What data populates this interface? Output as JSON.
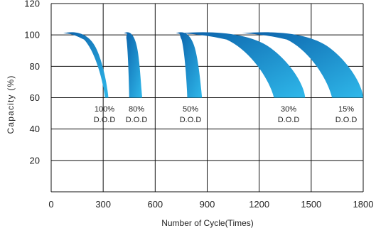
{
  "chart_data": {
    "type": "area",
    "xlabel": "Number of Cycle(Times)",
    "ylabel": "Capacity (%)",
    "xlim": [
      0,
      1800
    ],
    "ylim": [
      0,
      120
    ],
    "x_ticks": [
      "0",
      "300",
      "600",
      "900",
      "1200",
      "1500",
      "1800"
    ],
    "y_ticks": [
      "20",
      "40",
      "60",
      "80",
      "100",
      "120"
    ],
    "grid": true,
    "bands": [
      {
        "label": "100%",
        "sublabel": "D.O.D",
        "x_start": 70,
        "x_end_low": 310,
        "x_end_high": 330,
        "color_dark": "#0a5fa8",
        "color_light": "#2fb8ea"
      },
      {
        "label": "80%",
        "sublabel": "D.O.D",
        "x_start": 420,
        "x_end_low": 450,
        "x_end_high": 525,
        "color_dark": "#0a5fa8",
        "color_light": "#2fb8ea"
      },
      {
        "label": "50%",
        "sublabel": "D.O.D",
        "x_start": 720,
        "x_end_low": 785,
        "x_end_high": 870,
        "color_dark": "#0a5fa8",
        "color_light": "#2fb8ea"
      },
      {
        "label": "30%",
        "sublabel": "D.O.D",
        "x_start": 740,
        "x_end_low": 1285,
        "x_end_high": 1465,
        "color_dark": "#0a5fa8",
        "color_light": "#2fb8ea"
      },
      {
        "label": "15%",
        "sublabel": "D.O.D",
        "x_start": 1100,
        "x_end_low": 1620,
        "x_end_high": 1800,
        "color_dark": "#0a5fa8",
        "color_light": "#2fb8ea"
      }
    ]
  }
}
